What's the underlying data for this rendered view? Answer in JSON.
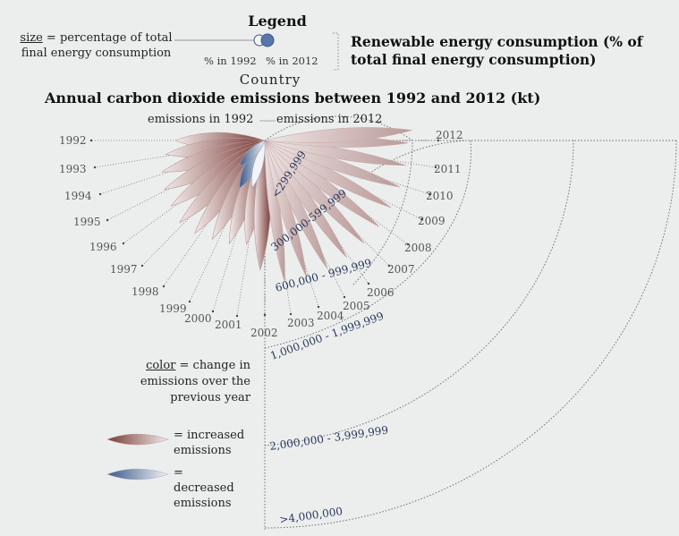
{
  "legend": {
    "title": "Legend",
    "size_word": "size",
    "size_rest": " = percentage of total final energy consumption",
    "pct_1992": "% in 1992",
    "pct_2012": "% in 2012",
    "renewable_title": "Renewable energy consumption (% of total final energy consumption)"
  },
  "country_label": "Country",
  "annual_title": "Annual carbon dioxide emissions between 1992 and 2012 (kt)",
  "emissions_1992": "emissions in 1992",
  "emissions_2012": "emissions in 2012",
  "years": [
    "1992",
    "1993",
    "1994",
    "1995",
    "1996",
    "1997",
    "1998",
    "1999",
    "2000",
    "2001",
    "2002",
    "2003",
    "2004",
    "2005",
    "2006",
    "2007",
    "2008",
    "2009",
    "2010",
    "2011",
    "2012"
  ],
  "bands": [
    "<299,999",
    "300,000-599,999",
    "600,000 - 999,999",
    "1,000,000 - 1,999,999",
    "2,000,000 - 3,999,999",
    ">4,000,000"
  ],
  "color_legend": {
    "color_word": "color",
    "color_rest": " = change in emissions over the previous year",
    "increased": "= increased emissions",
    "decreased": "= decreased emissions",
    "increased_color": "#7a3a35",
    "decreased_color": "#3c5a8a"
  }
}
